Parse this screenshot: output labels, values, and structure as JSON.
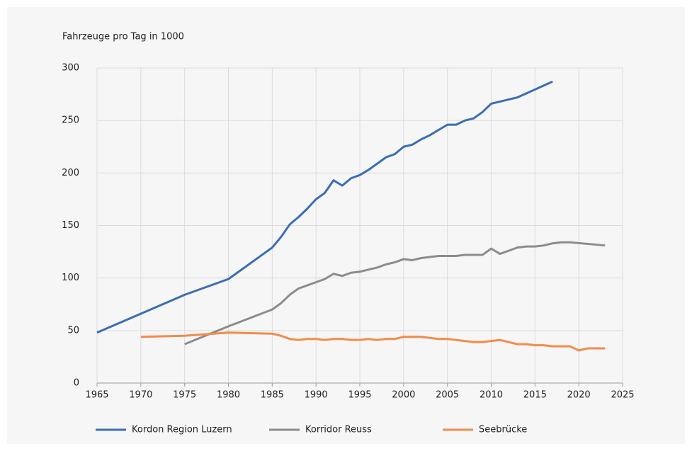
{
  "chart_data": {
    "type": "line",
    "y_label": "Fahrzeuge pro Tag in 1000",
    "xlim": [
      1965,
      2025
    ],
    "xticks": [
      1965,
      1970,
      1975,
      1980,
      1985,
      1990,
      1995,
      2000,
      2005,
      2010,
      2015,
      2020,
      2025
    ],
    "ylim": [
      0,
      300
    ],
    "yticks": [
      0,
      50,
      100,
      150,
      200,
      250,
      300
    ],
    "grid": true,
    "legend": "bottom",
    "series": [
      {
        "name": "Kordon Region Luzern",
        "color": "#3a6db4",
        "x": [
          1965,
          1975,
          1980,
          1985,
          1986,
          1987,
          1988,
          1989,
          1990,
          1991,
          1992,
          1993,
          1994,
          1995,
          1996,
          1997,
          1998,
          1999,
          2000,
          2001,
          2002,
          2003,
          2004,
          2005,
          2006,
          2007,
          2008,
          2009,
          2010,
          2013,
          2017
        ],
        "values": [
          48,
          84,
          99,
          129,
          139,
          151,
          158,
          166,
          175,
          181,
          193,
          188,
          195,
          198,
          203,
          209,
          215,
          218,
          225,
          227,
          232,
          236,
          241,
          246,
          246,
          250,
          252,
          258,
          266,
          272,
          287
        ]
      },
      {
        "name": "Korridor Reuss",
        "color": "#8c8c8c",
        "x": [
          1975,
          1980,
          1985,
          1986,
          1987,
          1988,
          1989,
          1990,
          1991,
          1992,
          1993,
          1994,
          1995,
          1996,
          1997,
          1998,
          1999,
          2000,
          2001,
          2002,
          2003,
          2004,
          2005,
          2006,
          2007,
          2008,
          2009,
          2010,
          2011,
          2012,
          2013,
          2014,
          2015,
          2016,
          2017,
          2018,
          2019,
          2023
        ],
        "values": [
          37,
          54,
          70,
          76,
          84,
          90,
          93,
          96,
          99,
          104,
          102,
          105,
          106,
          108,
          110,
          113,
          115,
          118,
          117,
          119,
          120,
          121,
          121,
          121,
          122,
          122,
          122,
          128,
          123,
          126,
          129,
          130,
          130,
          131,
          133,
          134,
          134,
          131
        ]
      },
      {
        "name": "Seebrücke",
        "color": "#f28b4a",
        "x": [
          1970,
          1975,
          1980,
          1985,
          1986,
          1987,
          1988,
          1989,
          1990,
          1991,
          1992,
          1993,
          1994,
          1995,
          1996,
          1997,
          1998,
          1999,
          2000,
          2001,
          2002,
          2003,
          2004,
          2005,
          2006,
          2007,
          2008,
          2009,
          2010,
          2011,
          2012,
          2013,
          2014,
          2015,
          2016,
          2017,
          2018,
          2019,
          2020,
          2021,
          2022,
          2023
        ],
        "values": [
          44,
          45,
          48,
          47,
          45,
          42,
          41,
          42,
          42,
          41,
          42,
          42,
          41,
          41,
          42,
          41,
          42,
          42,
          44,
          44,
          44,
          43,
          42,
          42,
          41,
          40,
          39,
          39,
          40,
          41,
          39,
          37,
          37,
          36,
          36,
          35,
          35,
          35,
          31,
          33,
          33,
          33
        ]
      }
    ]
  }
}
